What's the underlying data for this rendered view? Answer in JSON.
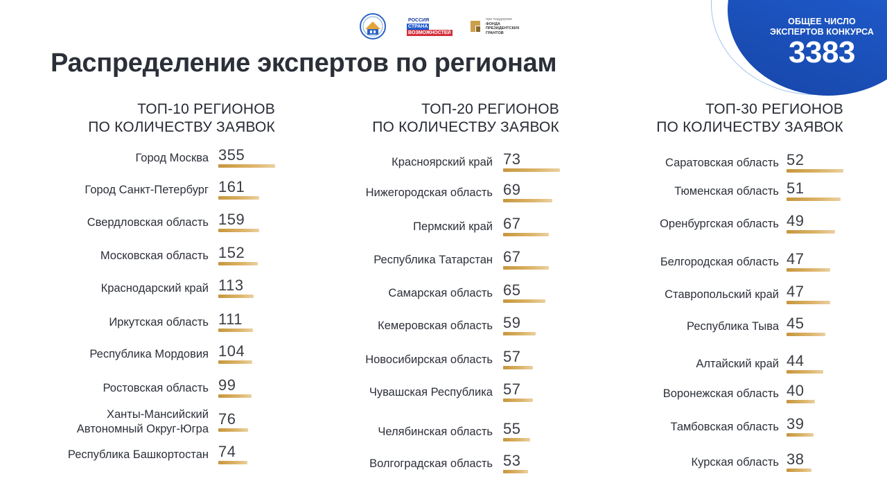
{
  "title": "Распределение экспертов по регионам",
  "badge": {
    "label": "ОБЩЕЕ ЧИСЛО ЭКСПЕРТОВ КОНКУРСА",
    "value": "3383"
  },
  "logos": {
    "logo1_icon": "house-emblem-icon",
    "logo2_lines": [
      "РОССИЯ",
      "СТРАНА",
      "ВОЗМОЖНОСТЕЙ"
    ],
    "logo3_lines": [
      "при поддержке",
      "ФОНДА",
      "ПРЕЗИДЕНТСКИХ",
      "ГРАНТОВ"
    ]
  },
  "colors": {
    "badge_blue": "#1f5bd1",
    "bar_gold": "#c6963d",
    "text_dark": "#262a33"
  },
  "chart_data": [
    {
      "type": "bar",
      "title_lines": [
        "ТОП-10 РЕГИОНОВ",
        "ПО КОЛИЧЕСТВУ ЗАЯВОК"
      ],
      "categories": [
        "Город Москва",
        "Город Санкт-Петербург",
        "Свердловская область",
        "Московская область",
        "Краснодарский край",
        "Иркутская область",
        "Республика Мордовия",
        "Ростовская область",
        "Ханты-Мансийский Автономный Округ-Югра",
        "Республика Башкортостан"
      ],
      "category_lines": [
        [
          "Город Москва"
        ],
        [
          "Город Санкт-Петербург"
        ],
        [
          "Свердловская область"
        ],
        [
          "Московская область"
        ],
        [
          "Краснодарский край"
        ],
        [
          "Иркутская область"
        ],
        [
          "Республика Мордовия"
        ],
        [
          "Ростовская область"
        ],
        [
          "Ханты-Мансийский",
          "Автономный Округ-Югра"
        ],
        [
          "Республика Башкортостан"
        ]
      ],
      "values": [
        355,
        161,
        159,
        152,
        113,
        111,
        104,
        99,
        76,
        74
      ]
    },
    {
      "type": "bar",
      "title_lines": [
        "ТОП-20 РЕГИОНОВ",
        "ПО КОЛИЧЕСТВУ ЗАЯВОК"
      ],
      "categories": [
        "Красноярский край",
        "Нижегородская область",
        "Пермский край",
        "Республика Татарстан",
        "Самарская область",
        "Кемеровская область",
        "Новосибирская область",
        "Чувашская Республика",
        "Челябинская область",
        "Волгоградская область"
      ],
      "category_lines": [
        [
          "Красноярский край"
        ],
        [
          "Нижегородская область"
        ],
        [
          "Пермский край"
        ],
        [
          "Республика Татарстан"
        ],
        [
          "Самарская область"
        ],
        [
          "Кемеровская область"
        ],
        [
          "Новосибирская область"
        ],
        [
          "Чувашская Республика"
        ],
        [
          "Челябинская область"
        ],
        [
          "Волгоградская область"
        ]
      ],
      "values": [
        73,
        69,
        67,
        67,
        65,
        59,
        57,
        57,
        55,
        53
      ]
    },
    {
      "type": "bar",
      "title_lines": [
        "ТОП-30 РЕГИОНОВ",
        "ПО КОЛИЧЕСТВУ ЗАЯВОК"
      ],
      "categories": [
        "Саратовская область",
        "Тюменская область",
        "Оренбургская область",
        "Белгородская область",
        "Ставропольский край",
        "Республика Тыва",
        "Алтайский край",
        "Воронежская область",
        "Тамбовская область",
        "Курская область"
      ],
      "category_lines": [
        [
          "Саратовская область"
        ],
        [
          "Тюменская область"
        ],
        [
          "Оренбургская область"
        ],
        [
          "Белгородская область"
        ],
        [
          "Ставропольский край"
        ],
        [
          "Республика Тыва"
        ],
        [
          "Алтайский край"
        ],
        [
          "Воронежская область"
        ],
        [
          "Тамбовская область"
        ],
        [
          "Курская область"
        ]
      ],
      "values": [
        52,
        51,
        49,
        47,
        47,
        45,
        44,
        40,
        39,
        38
      ]
    }
  ]
}
